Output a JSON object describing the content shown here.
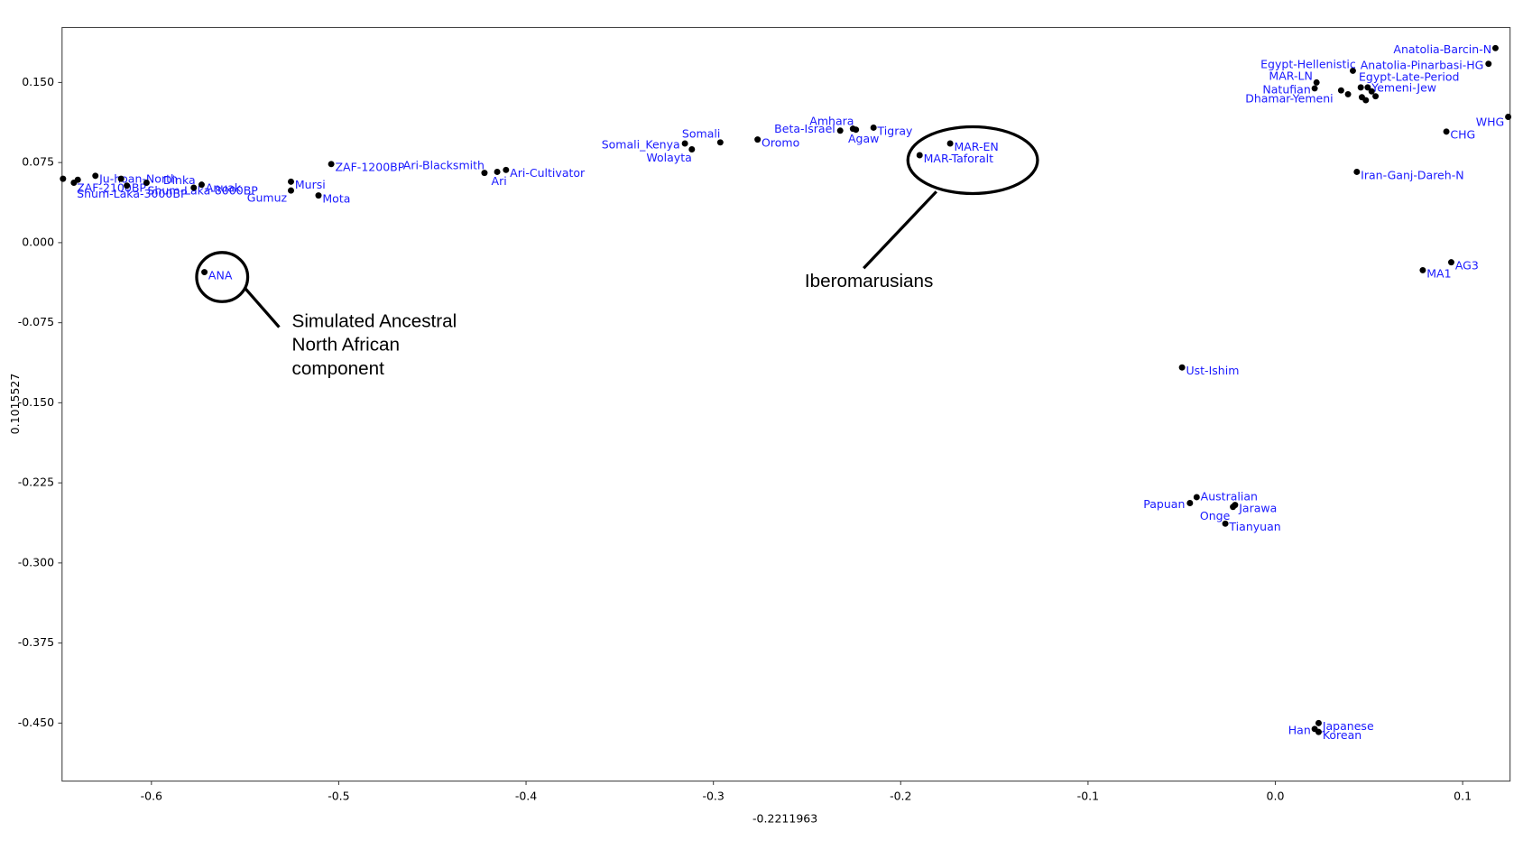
{
  "chart_data": {
    "type": "scatter",
    "x_label": "-0.2211963",
    "y_label": "0.1015527",
    "xlim": [
      -0.6477,
      0.1253
    ],
    "ylim": [
      -0.5043,
      0.2015
    ],
    "xticks": [
      -0.6,
      -0.5,
      -0.4,
      -0.3,
      -0.2,
      -0.1,
      {
        "value": 0,
        "label": "0.0"
      },
      0.1
    ],
    "yticks": [
      {
        "value": 0.15,
        "label": "0.150"
      },
      {
        "value": 0.075,
        "label": "0.075"
      },
      {
        "value": 0,
        "label": "0.000"
      },
      {
        "value": -0.075,
        "label": "-0.075"
      },
      {
        "value": -0.15,
        "label": "-0.150"
      },
      {
        "value": -0.225,
        "label": "-0.225"
      },
      {
        "value": -0.3,
        "label": "-0.300"
      },
      {
        "value": -0.375,
        "label": "-0.375"
      },
      {
        "value": -0.45,
        "label": "-0.450"
      }
    ],
    "color": "#000000",
    "label_color": "#1a1aff",
    "x": [
      -0.6472,
      -0.6414,
      -0.6393,
      -0.6299,
      -0.6162,
      -0.6131,
      -0.6026,
      -0.5774,
      -0.5732,
      -0.5255,
      -0.5255,
      -0.5108,
      -0.504,
      -0.4222,
      -0.4154,
      -0.4107,
      -0.3152,
      -0.3115,
      -0.2963,
      -0.2764,
      -0.2323,
      -0.2255,
      -0.2239,
      -0.2145,
      -0.1736,
      -0.1899,
      -0.5717,
      -0.0498,
      -0.042,
      -0.0456,
      -0.0215,
      -0.0226,
      -0.0267,
      0.0231,
      0.021,
      0.0231,
      0.0787,
      0.0939,
      0.0435,
      0.0913,
      0.1243,
      0.1175,
      0.1138,
      0.0414,
      0.022,
      0.021,
      0.0351,
      0.0388,
      0.0456,
      0.0493,
      0.0514,
      0.0462,
      0.0483,
      0.0535
    ],
    "y": [
      0.0598,
      0.0561,
      0.0589,
      0.0626,
      0.0598,
      0.0534,
      0.0561,
      0.0515,
      0.0543,
      0.0571,
      0.0488,
      0.0442,
      0.0736,
      0.0653,
      0.0663,
      0.0681,
      0.0929,
      0.0874,
      0.0939,
      0.0966,
      0.1049,
      0.1067,
      0.1058,
      0.1077,
      0.0929,
      0.0819,
      -0.0276,
      -0.1169,
      -0.2384,
      -0.2439,
      -0.2457,
      -0.2475,
      -0.2632,
      -0.45,
      -0.4555,
      -0.4583,
      -0.0258,
      -0.0184,
      0.0663,
      0.104,
      0.1178,
      0.1822,
      0.1675,
      0.161,
      0.15,
      0.1445,
      0.1426,
      0.139,
      0.1454,
      0.1454,
      0.1417,
      0.1362,
      0.1334,
      0.1371
    ],
    "labels": [
      null,
      "ZAF-2100BP",
      "Shum-Laka-3000BP",
      "Ju-hoan-North",
      null,
      "Shum-Laka-8000BP",
      "Dinka",
      null,
      "Anuak",
      "Mursi",
      "Gumuz",
      "Mota",
      "ZAF-1200BP",
      "Ari-Blacksmith",
      "Ari",
      "Ari-Cultivator",
      "Somali_Kenya",
      "Wolayta",
      "Somali",
      "Oromo",
      "Beta-Israel",
      "Amhara",
      "Agaw",
      "Tigray",
      "MAR-EN",
      "MAR-Taforalt",
      "ANA",
      "Ust-Ishim",
      "Australian",
      "Papuan",
      "Jarawa",
      "Onge",
      "Tianyuan",
      "Japanese",
      "Han",
      "Korean",
      "MA1",
      "AG3",
      "Iran-Ganj-Dareh-N",
      "CHG",
      "WHG",
      "Anatolia-Barcin-N",
      "Anatolia-Pinarbasi-HG",
      "Egypt-Hellenistic",
      "MAR-LN",
      "Natufian",
      "Dhamar-Yemeni",
      null,
      "Egypt-Late-Period",
      "Yemeni-Jew",
      null,
      null,
      null,
      null
    ],
    "annotations": [
      [
        "Simulated Ancestral",
        "North African",
        "component"
      ],
      [
        "Iberomarusians"
      ]
    ]
  }
}
